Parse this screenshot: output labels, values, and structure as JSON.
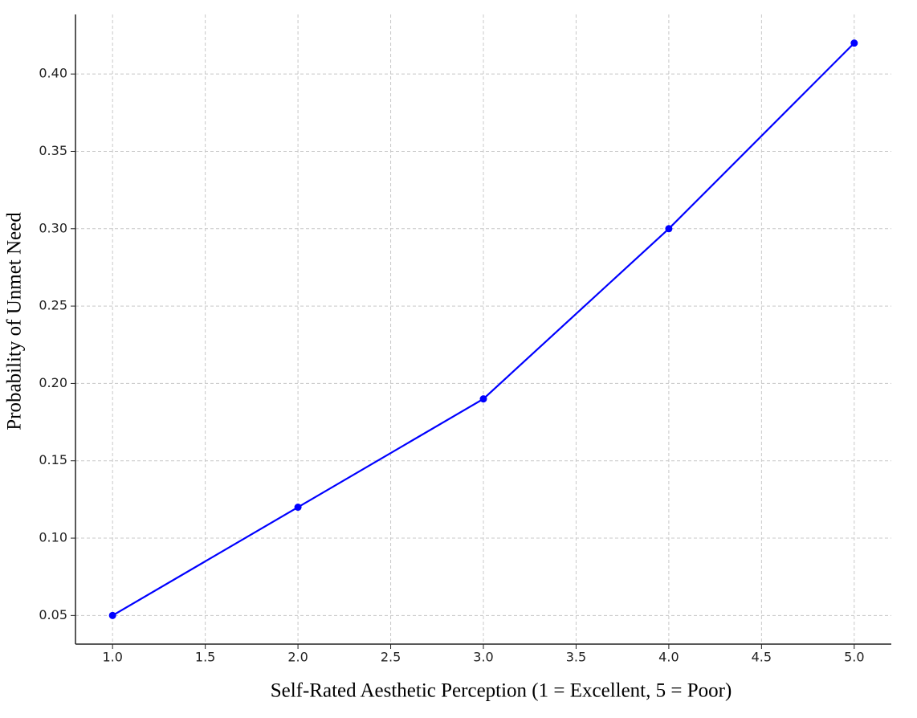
{
  "chart_data": {
    "type": "line",
    "x_label": "Self-Rated Aesthetic Perception (1 = Excellent, 5 = Poor)",
    "y_label": "Probability of Unmet Need",
    "x": [
      1,
      2,
      3,
      4,
      5
    ],
    "series": [
      {
        "name": "Probability of Unmet Need",
        "color": "#0000ff",
        "values": [
          0.05,
          0.12,
          0.19,
          0.3,
          0.42
        ]
      }
    ],
    "xlim": [
      0.8,
      5.2
    ],
    "ylim": [
      0.0315,
      0.4385
    ],
    "xticks": [
      {
        "value": 1,
        "label": "1.0"
      },
      1.5,
      {
        "value": 2,
        "label": "2.0"
      },
      2.5,
      {
        "value": 3,
        "label": "3.0"
      },
      3.5,
      {
        "value": 4,
        "label": "4.0"
      },
      4.5,
      {
        "value": 5,
        "label": "5.0"
      }
    ],
    "yticks": [
      0.05,
      {
        "value": 0.1,
        "label": "0.10"
      },
      0.15,
      {
        "value": 0.2,
        "label": "0.20"
      },
      0.25,
      {
        "value": 0.3,
        "label": "0.30"
      },
      0.35,
      {
        "value": 0.4,
        "label": "0.40"
      }
    ],
    "grid": true
  }
}
